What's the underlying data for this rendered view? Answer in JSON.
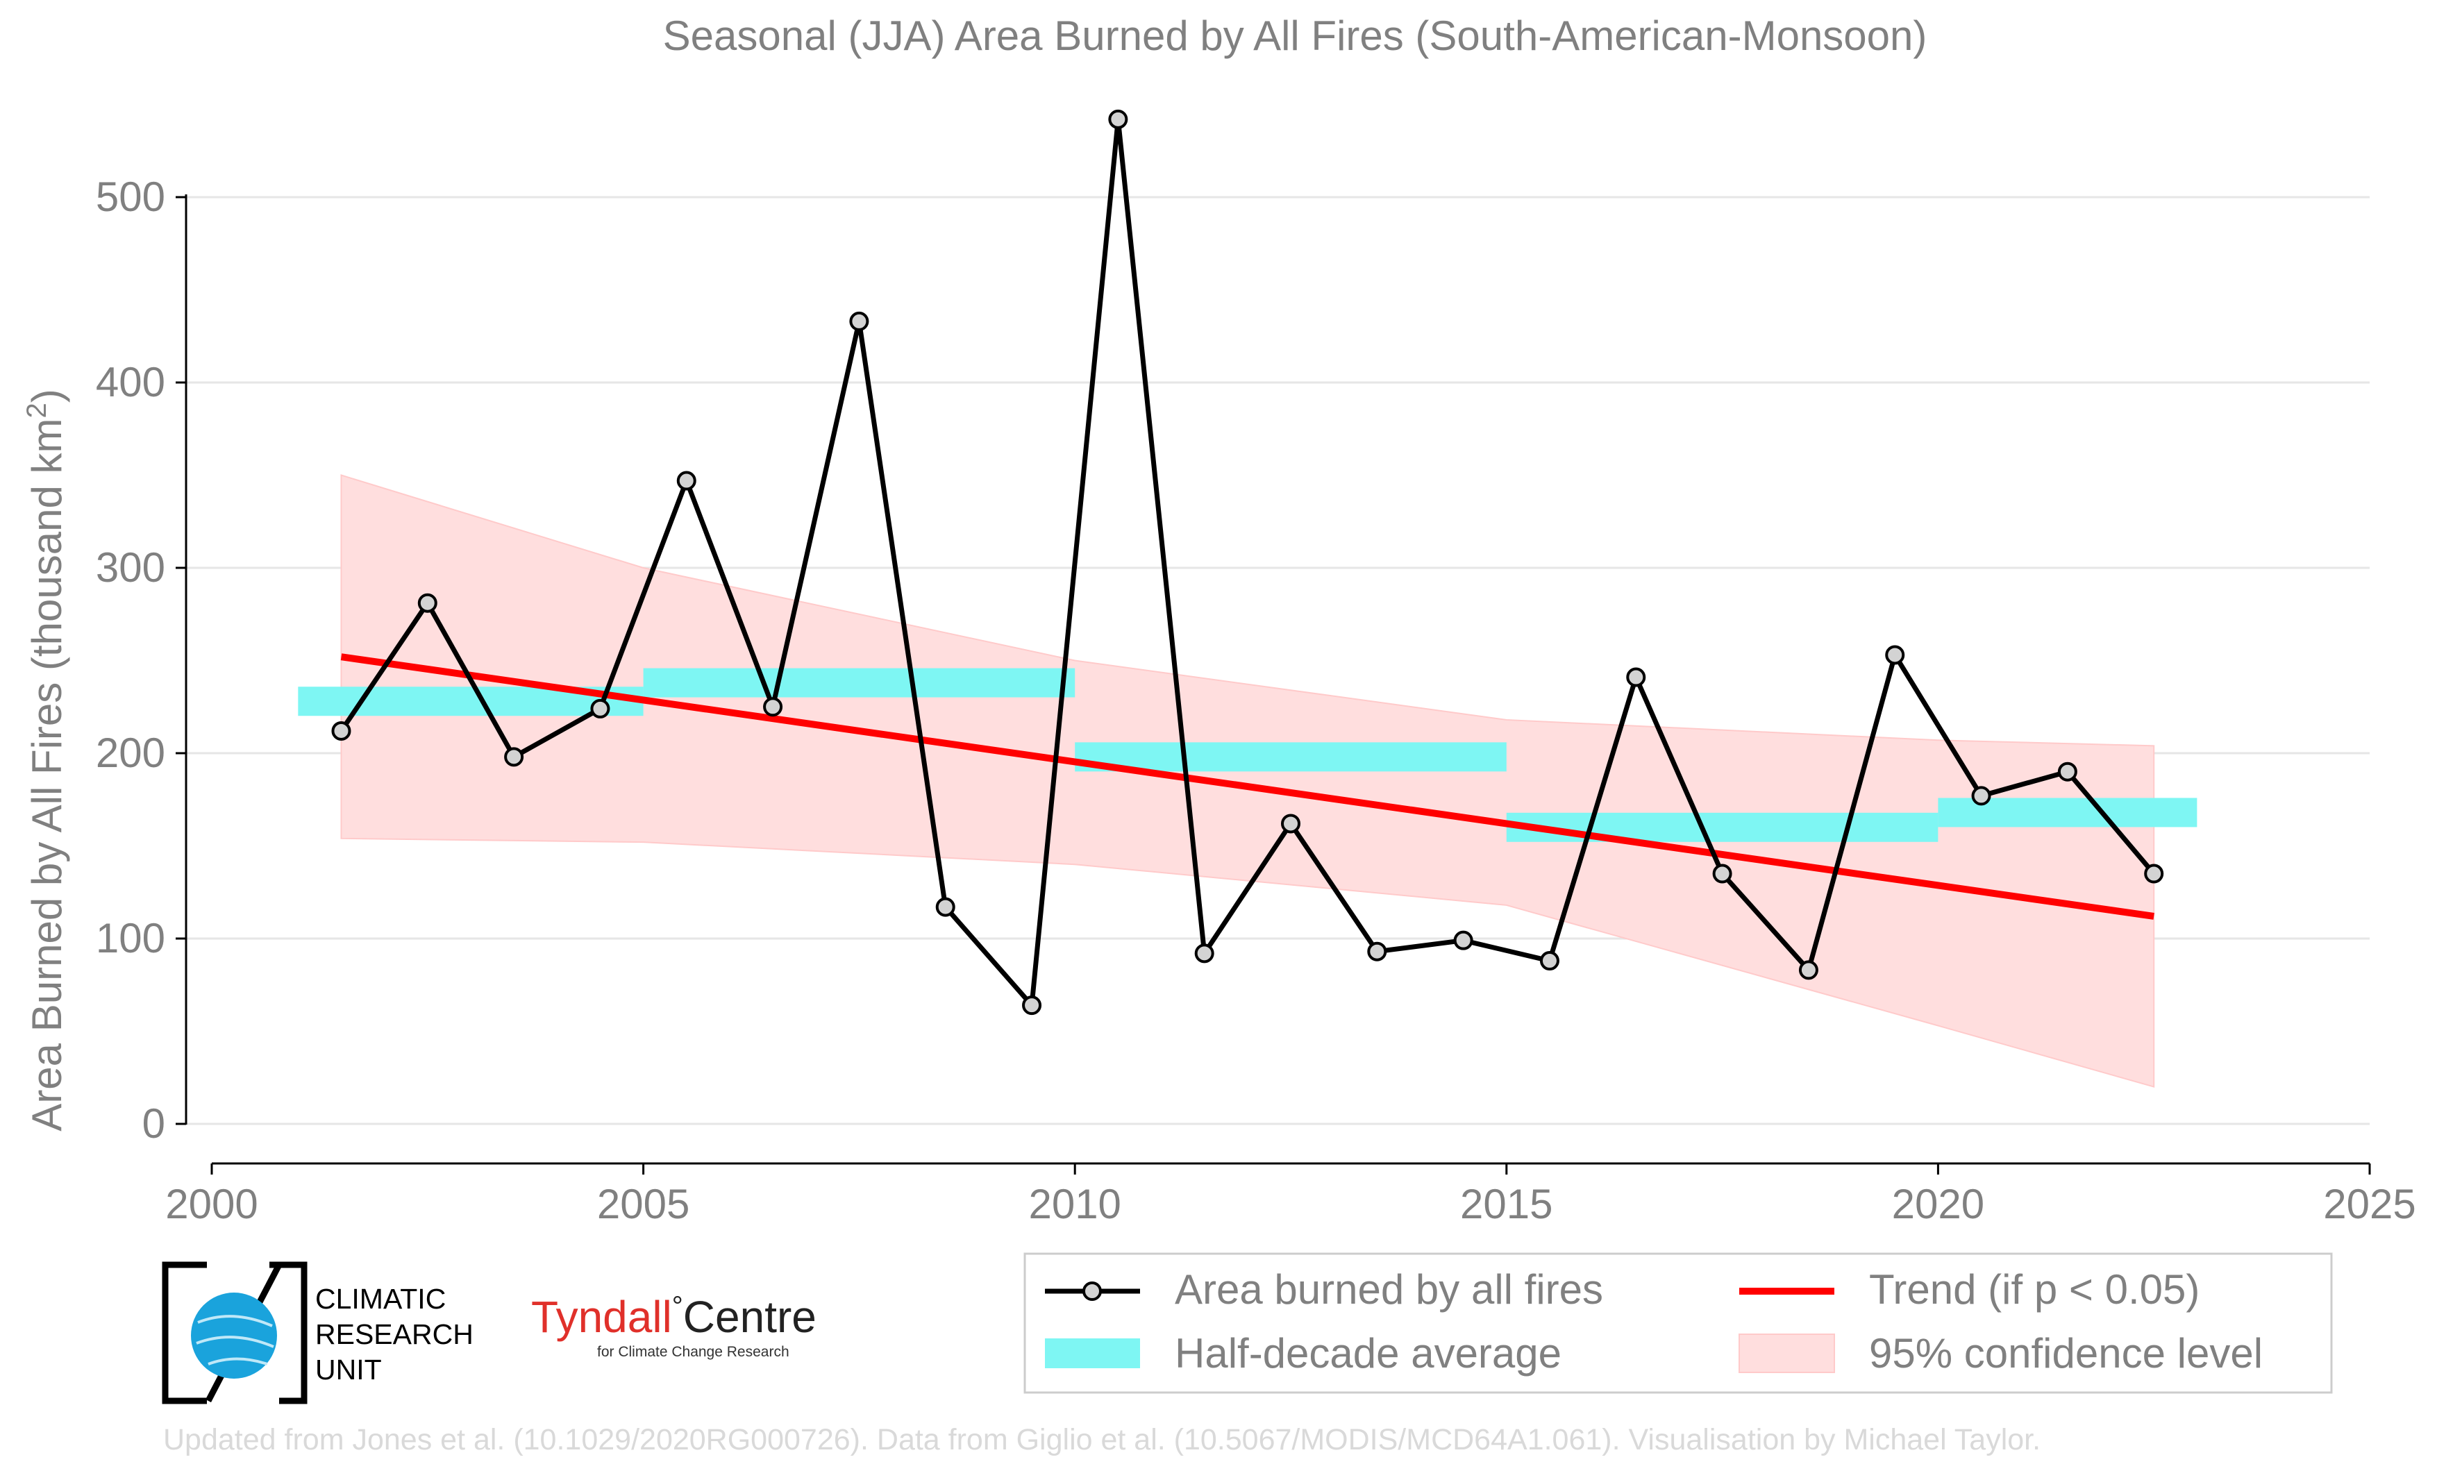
{
  "chart_data": {
    "type": "line",
    "title": "Seasonal (JJA) Area Burned by All Fires (South-American-Monsoon)",
    "ylabel_main": "Area Burned by All Fires (thousand km",
    "ylabel_sup": "2",
    "ylabel_close": ")",
    "xlim": [
      2000,
      2025
    ],
    "ylim": [
      0,
      540
    ],
    "xticks": [
      "2000",
      "2005",
      "2010",
      "2015",
      "2020",
      "2025"
    ],
    "yticks": [
      "0",
      "100",
      "200",
      "300",
      "400",
      "500"
    ],
    "grid": "horizontal",
    "legend_position": "bottom-right",
    "series": [
      {
        "name": "Area burned by all fires",
        "color": "#000000",
        "x": [
          2001.5,
          2002.5,
          2003.5,
          2004.5,
          2005.5,
          2006.5,
          2007.5,
          2008.5,
          2009.5,
          2010.5,
          2011.5,
          2012.5,
          2013.5,
          2014.5,
          2015.5,
          2016.5,
          2017.5,
          2018.5,
          2019.5,
          2020.5,
          2021.5,
          2022.5
        ],
        "values": [
          212,
          281,
          198,
          224,
          347,
          225,
          433,
          117,
          64,
          542,
          92,
          162,
          93,
          99,
          88,
          241,
          135,
          83,
          253,
          177,
          190,
          135
        ]
      },
      {
        "name": "Half-decade average",
        "color": "#7ef6f3",
        "segments": [
          {
            "x0": 2001.0,
            "x1": 2005.0,
            "value": 228
          },
          {
            "x0": 2005.0,
            "x1": 2010.0,
            "value": 238
          },
          {
            "x0": 2010.0,
            "x1": 2015.0,
            "value": 198
          },
          {
            "x0": 2015.0,
            "x1": 2020.0,
            "value": 160
          },
          {
            "x0": 2020.0,
            "x1": 2023.0,
            "value": 168
          }
        ]
      },
      {
        "name": "Trend (if p < 0.05)",
        "color": "#ff0000",
        "x": [
          2001.5,
          2022.5
        ],
        "values": [
          252,
          112
        ]
      },
      {
        "name": "95% confidence level",
        "color": "#ffdede",
        "x": [
          2001.5,
          2005,
          2010,
          2015,
          2020,
          2022.5
        ],
        "upper": [
          350,
          300,
          250,
          218,
          207,
          204
        ],
        "lower": [
          154,
          152,
          140,
          118,
          53,
          20
        ]
      }
    ]
  },
  "logos": {
    "cru_lines": [
      "CLIMATIC",
      "RESEARCH",
      "UNIT"
    ],
    "tyndall_main": "Tyndall",
    "tyndall_degree": "°",
    "tyndall_centre": "Centre",
    "tyndall_sub": "for Climate Change Research",
    "colors": {
      "cru_globe": "#1aa3dc",
      "tyndall_red": "#e0302a"
    }
  },
  "footer": "Updated from Jones et al. (10.1029/2020RG000726). Data from Giglio et al. (10.5067/MODIS/MCD64A1.061). Visualisation by Michael Taylor."
}
